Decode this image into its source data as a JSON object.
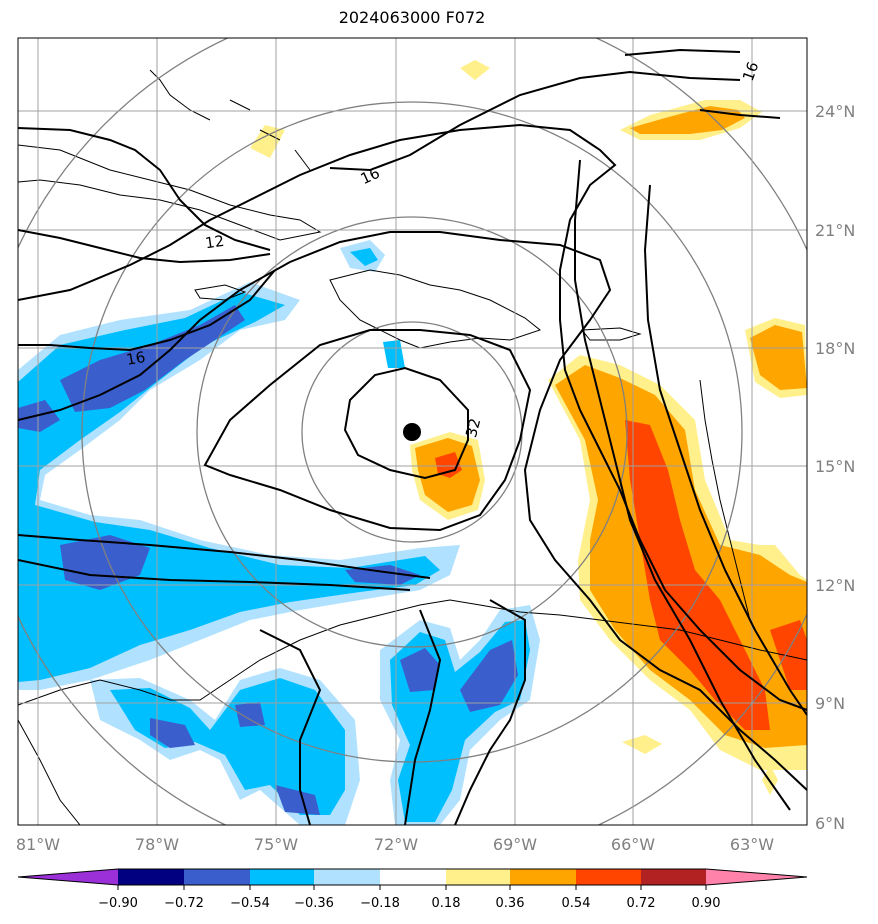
{
  "title": "2024063000 F072",
  "map": {
    "lon_labels": [
      "81°W",
      "78°W",
      "75°W",
      "72°W",
      "69°W",
      "66°W",
      "63°W"
    ],
    "lat_labels": [
      "24°N",
      "21°N",
      "18°N",
      "15°N",
      "12°N",
      "9°N",
      "6°N"
    ],
    "contour_labels": [
      "16",
      "16",
      "12",
      "16",
      "32"
    ],
    "storm_center": {
      "label": "storm-center"
    }
  },
  "colorbar": {
    "ticks": [
      "−0.90",
      "−0.72",
      "−0.54",
      "−0.36",
      "−0.18",
      "0.18",
      "0.36",
      "0.54",
      "0.72",
      "0.90"
    ],
    "colors": [
      "#9b30d9",
      "#000080",
      "#3a5fcd",
      "#00bfff",
      "#b0e2ff",
      "#ffffff",
      "#fff08c",
      "#ffa500",
      "#ff4500",
      "#b22222",
      "#ff82ab"
    ]
  },
  "colors": {
    "blue_light": "#b0e2ff",
    "blue_mid": "#00bfff",
    "blue_dark": "#3a5fcd",
    "yellow": "#fff08c",
    "orange": "#ffa500",
    "red_orange": "#ff4500"
  }
}
